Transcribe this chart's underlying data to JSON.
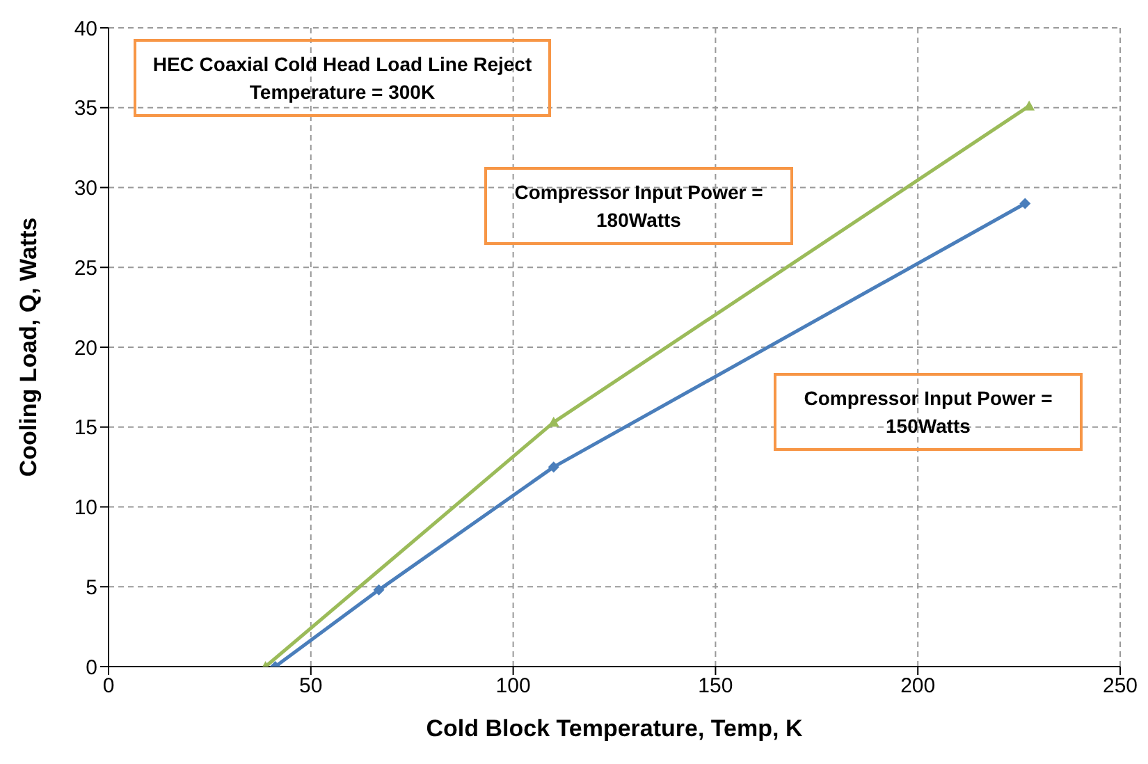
{
  "chart_data": {
    "type": "line",
    "xlabel": "Cold Block Temperature, Temp, K",
    "ylabel": "Cooling Load, Q,  Watts",
    "annotations": [
      "HEC Coaxial Cold Head Load Line Reject Temperature = 300K",
      "Compressor Input Power = 180Watts",
      "Compressor Input Power = 150Watts"
    ],
    "series": [
      {
        "color": "#9bbb59",
        "marker": "triangle",
        "x": [
          38.8,
          110,
          227.5
        ],
        "values": [
          0,
          15.3,
          35.1
        ]
      },
      {
        "color": "#4a7ebb",
        "marker": "diamond",
        "x": [
          41.2,
          66.8,
          110,
          226.5
        ],
        "values": [
          0,
          4.8,
          12.5,
          29.0
        ]
      }
    ],
    "xlim": [
      0,
      250
    ],
    "xticks": [
      0,
      50,
      100,
      150,
      200,
      250
    ],
    "ylim": [
      0,
      40
    ],
    "yticks": [
      0,
      5,
      10,
      15,
      20,
      25,
      30,
      35,
      40
    ],
    "grid": true,
    "legend": false
  }
}
